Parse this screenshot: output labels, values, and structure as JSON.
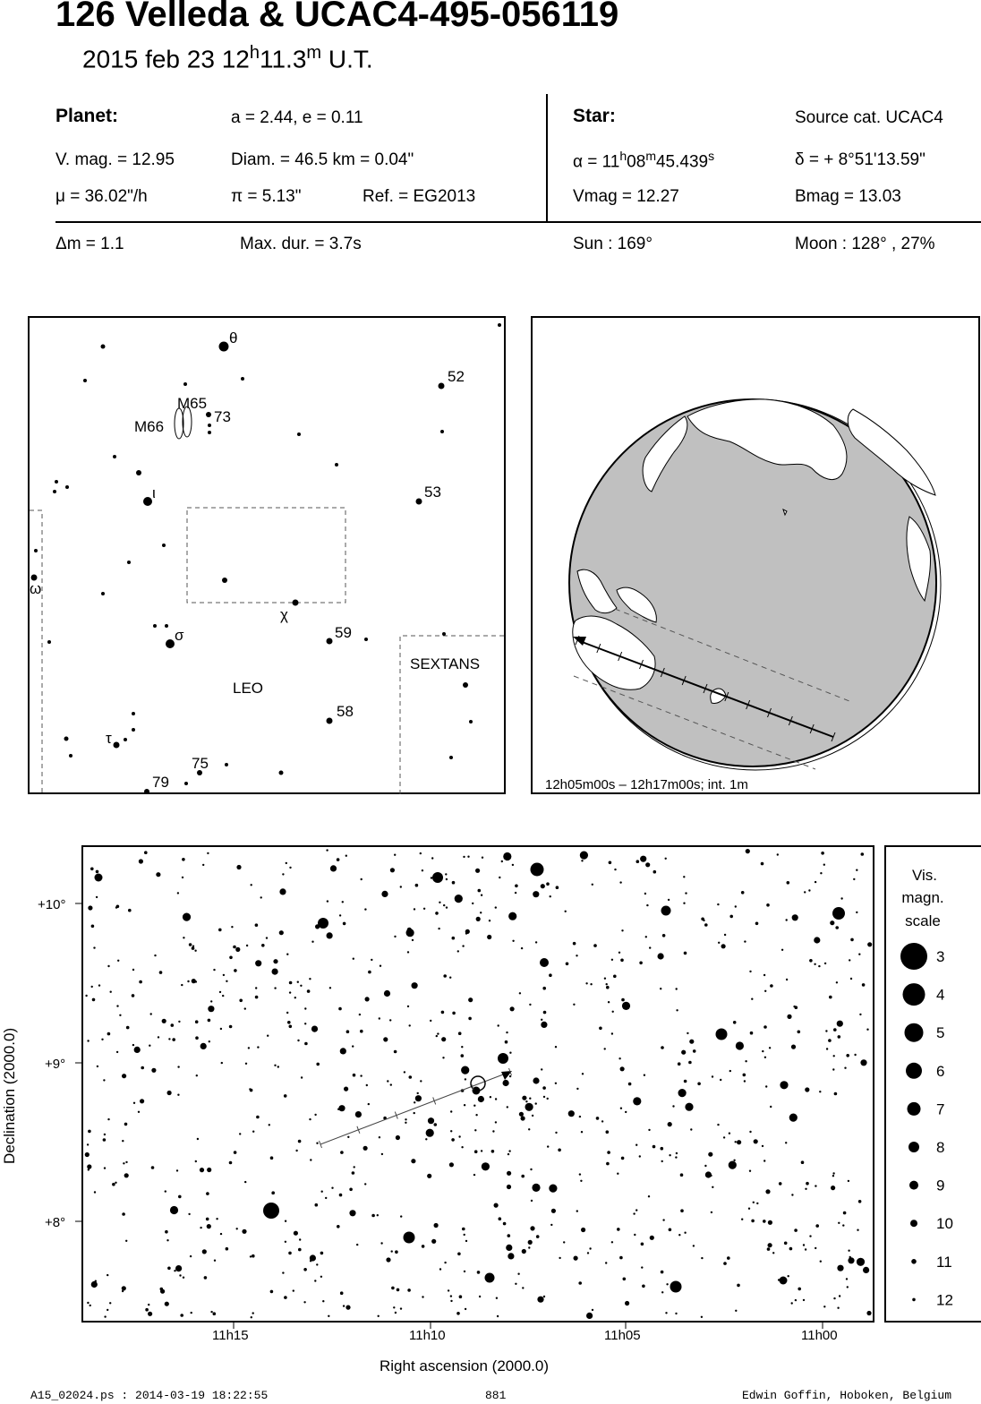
{
  "header": {
    "title": "126 Velleda  &  UCAC4-495-056119",
    "date": "2015 feb 23  12",
    "hour_unit": "h",
    "minutes": "11.3",
    "minute_unit": "m",
    "time_suffix": " U.T."
  },
  "planet": {
    "label": "Planet:",
    "orbit": "a = 2.44, e = 0.11",
    "vmag": "V. mag. = 12.95",
    "diam": "Diam. = 46.5 km = 0.04\"",
    "mu": "μ =  36.02\"/h",
    "pi": "π =  5.13\"",
    "ref": "Ref. = EG2013"
  },
  "star": {
    "label": "Star:",
    "source": "Source cat.  UCAC4",
    "alpha_prefix": "α = 11",
    "alpha_h": "h",
    "alpha_mid": "08",
    "alpha_m": "m",
    "alpha_sec": "45.439",
    "alpha_s": "s",
    "delta": "δ = + 8°51'13.59\"",
    "vmag": "Vmag = 12.27",
    "bmag": "Bmag = 13.03"
  },
  "event": {
    "dm": "Δm = 1.1",
    "maxdur": "Max. dur. = 3.7s",
    "sun": "Sun : 169°",
    "moon": "Moon : 128° , 27%"
  },
  "finder": {
    "labels": {
      "theta": "θ",
      "n52": "52",
      "m65": "M65",
      "m66": "M66",
      "n73": "73",
      "iota": "ι",
      "n53": "53",
      "omega": "ω",
      "chi": "χ",
      "sigma": "σ",
      "n59": "59",
      "sextans": "SEXTANS",
      "leo": "LEO",
      "n58": "58",
      "tau": "τ",
      "n75": "75",
      "n79": "79"
    }
  },
  "globe": {
    "caption": "12h05m00s – 12h17m00s; int.  1m",
    "colors": {
      "land": "#ffffff",
      "sea": "#c0c0c0"
    }
  },
  "chart": {
    "ylabel": "Declination (2000.0)",
    "xlabel": "Right ascension (2000.0)",
    "yticks": [
      "+10°",
      "+9°",
      "+8°"
    ],
    "xticks": [
      "11h15",
      "11h10",
      "11h05",
      "11h00"
    ]
  },
  "legend": {
    "title1": "Vis.",
    "title2": "magn.",
    "title3": "scale",
    "mags": [
      "3",
      "4",
      "5",
      "6",
      "7",
      "8",
      "9",
      "10",
      "11",
      "12"
    ]
  },
  "footer": {
    "left": "A15_02024.ps : 2014-03-19 18:22:55",
    "mid": "881",
    "right": "Edwin Goffin, Hoboken, Belgium"
  },
  "chart_data": {
    "type": "scatter",
    "xlabel": "Right ascension (2000.0)",
    "ylabel": "Declination (2000.0)",
    "x_ticks": [
      "11h15",
      "11h10",
      "11h05",
      "11h00"
    ],
    "y_ticks": [
      "+10°",
      "+9°",
      "+8°"
    ],
    "target_star": {
      "ra": "11h08m45.439s",
      "dec": "+8°51'13.59\""
    },
    "path_direction": "toward lower RA, increasing Dec",
    "magnitude_scale": [
      3,
      4,
      5,
      6,
      7,
      8,
      9,
      10,
      11,
      12
    ]
  }
}
